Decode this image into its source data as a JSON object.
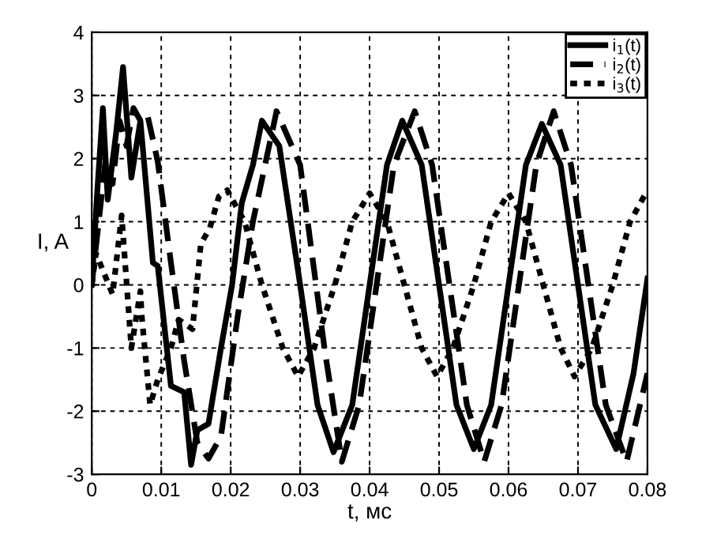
{
  "chart_data": {
    "type": "line",
    "xlabel": "t, мс",
    "ylabel": "I, A",
    "xlim": [
      0,
      0.08
    ],
    "xticks": [
      0,
      0.01,
      0.02,
      0.03,
      0.04,
      0.05,
      0.06,
      0.07,
      0.08
    ],
    "ylim": [
      -3,
      4
    ],
    "yticks": [
      -3,
      -2,
      -1,
      0,
      1,
      2,
      3,
      4
    ],
    "grid": true,
    "legend": "top right",
    "series": [
      {
        "name": "i$_{1}$(t)",
        "color": "#000000",
        "line_style": "solid",
        "x": [
          0,
          0.0008,
          0.0016,
          0.0023,
          0.0035,
          0.0045,
          0.0057,
          0.007,
          0.0088,
          0.0095,
          0.0114,
          0.0133,
          0.0143,
          0.0152,
          0.0168,
          0.0186,
          0.0202,
          0.0216,
          0.0232,
          0.0245,
          0.027,
          0.03,
          0.0325,
          0.0348,
          0.0375,
          0.04,
          0.0425,
          0.0447,
          0.0475,
          0.05,
          0.0525,
          0.055,
          0.0575,
          0.06,
          0.0625,
          0.0648,
          0.0675,
          0.07,
          0.0725,
          0.0755,
          0.078,
          0.08
        ],
        "values": [
          0,
          1.5,
          2.8,
          1.35,
          2.4,
          3.45,
          1.7,
          2.6,
          0.35,
          0.3,
          -1.6,
          -1.7,
          -2.85,
          -2.3,
          -2.2,
          -1.0,
          0,
          1.3,
          1.9,
          2.6,
          2.2,
          0,
          -1.9,
          -2.65,
          -1.9,
          0,
          1.9,
          2.6,
          1.9,
          0,
          -1.9,
          -2.6,
          -1.9,
          0,
          1.9,
          2.55,
          1.9,
          0,
          -1.9,
          -2.6,
          -1.4,
          0.1
        ]
      },
      {
        "name": "i$_{2}$(t)",
        "color": "#000000",
        "line_style": "dashed",
        "x": [
          0,
          0.001,
          0.002,
          0.003,
          0.004,
          0.005,
          0.006,
          0.007,
          0.008,
          0.0095,
          0.0114,
          0.0133,
          0.0152,
          0.0168,
          0.0186,
          0.021,
          0.0232,
          0.0266,
          0.03,
          0.0335,
          0.036,
          0.0385,
          0.041,
          0.0435,
          0.0465,
          0.049,
          0.0515,
          0.054,
          0.0565,
          0.059,
          0.0615,
          0.064,
          0.0665,
          0.069,
          0.0715,
          0.074,
          0.077,
          0.08
        ],
        "values": [
          0,
          1.0,
          2.0,
          1.6,
          2.6,
          2.2,
          2.8,
          2.6,
          2.7,
          1.95,
          0.35,
          -1.2,
          -2.5,
          -2.75,
          -2.4,
          -0.5,
          1.0,
          2.75,
          1.9,
          -1.0,
          -2.8,
          -1.9,
          0,
          1.9,
          2.75,
          1.9,
          0,
          -1.9,
          -2.8,
          -1.9,
          0,
          1.9,
          2.75,
          1.9,
          0,
          -1.9,
          -2.8,
          -1.4
        ]
      },
      {
        "name": "i$_{3}$(t)",
        "color": "#000000",
        "line_style": "dotted",
        "x": [
          0,
          0.0006,
          0.003,
          0.0043,
          0.0057,
          0.007,
          0.0072,
          0.0084,
          0.0095,
          0.0114,
          0.0125,
          0.0145,
          0.0157,
          0.017,
          0.0183,
          0.0195,
          0.022,
          0.0245,
          0.0275,
          0.0297,
          0.032,
          0.035,
          0.0375,
          0.04,
          0.0425,
          0.045,
          0.0475,
          0.0497,
          0.052,
          0.055,
          0.0575,
          0.06,
          0.0625,
          0.065,
          0.0675,
          0.0695,
          0.072,
          0.075,
          0.0775,
          0.08
        ],
        "values": [
          0,
          0.5,
          -0.15,
          1.1,
          -1.0,
          -0.1,
          -0.5,
          -1.9,
          -1.5,
          -1.0,
          -0.55,
          -0.7,
          0.65,
          0.9,
          1.4,
          1.5,
          1.0,
          0,
          -1.0,
          -1.45,
          -1.0,
          0,
          1.0,
          1.45,
          1.0,
          0,
          -1.0,
          -1.45,
          -1.0,
          0,
          1.0,
          1.45,
          1.0,
          0,
          -1.0,
          -1.45,
          -1.0,
          0,
          1.0,
          1.5
        ]
      }
    ]
  }
}
